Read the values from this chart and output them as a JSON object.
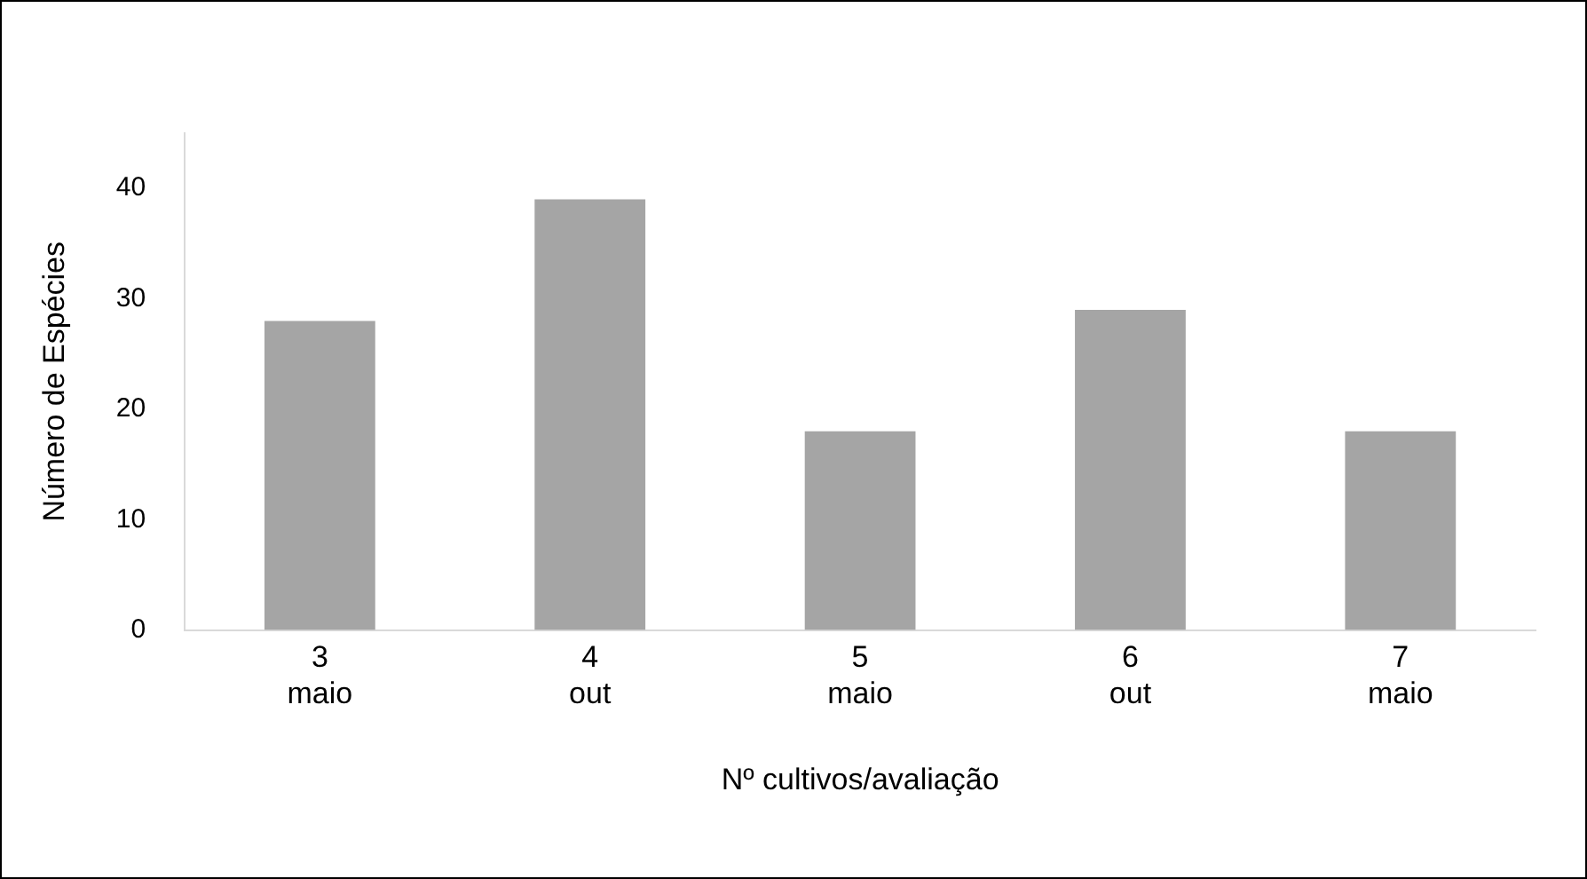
{
  "chart_data": {
    "type": "bar",
    "xlabel": "Nº cultivos/avaliação",
    "ylabel": "Número de Espécies",
    "categories": [
      "3\nmaio",
      "4\nout",
      "5\nmaio",
      "6\nout",
      "7\nmaio"
    ],
    "values": [
      28,
      39,
      18,
      29,
      18
    ],
    "color": "#a5a5a5",
    "ylim": [
      0,
      45
    ],
    "yticks": [
      0,
      10,
      20,
      30,
      40
    ],
    "grid": false,
    "legend": false
  }
}
